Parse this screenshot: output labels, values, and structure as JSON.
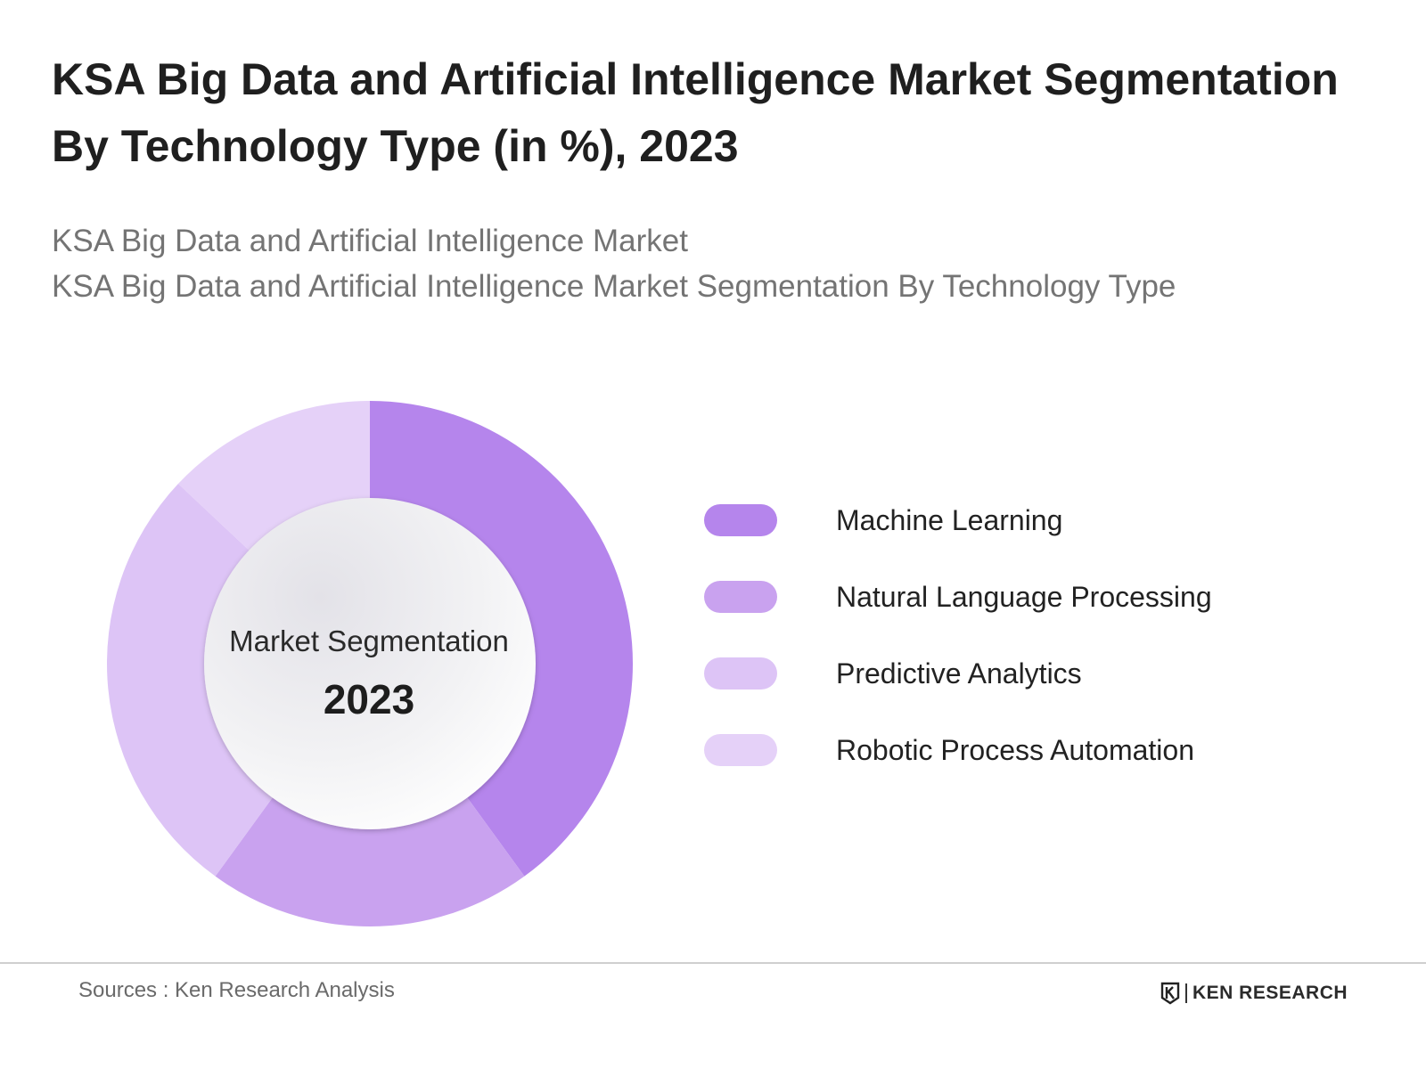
{
  "title": "KSA Big Data and Artificial Intelligence Market Segmentation By Technology Type (in %), 2023",
  "subtitles": [
    "KSA Big Data and Artificial Intelligence Market",
    "KSA Big Data and Artificial Intelligence Market Segmentation By Technology Type"
  ],
  "center": {
    "label": "Market Segmentation",
    "year": "2023"
  },
  "chart_data": {
    "type": "pie",
    "style": "donut",
    "title": "KSA Big Data and Artificial Intelligence Market Segmentation By Technology Type (in %), 2023",
    "legend_placement": "right",
    "categories": [
      "Machine Learning",
      "Natural Language Processing",
      "Predictive Analytics",
      "Robotic Process Automation"
    ],
    "values": [
      40,
      20,
      27,
      13
    ],
    "colors": [
      "#b585ec",
      "#c9a2ef",
      "#ddc4f6",
      "#e5d1f8"
    ]
  },
  "footer": {
    "source": "Sources : Ken Research Analysis",
    "brand": "KEN RESEARCH"
  }
}
